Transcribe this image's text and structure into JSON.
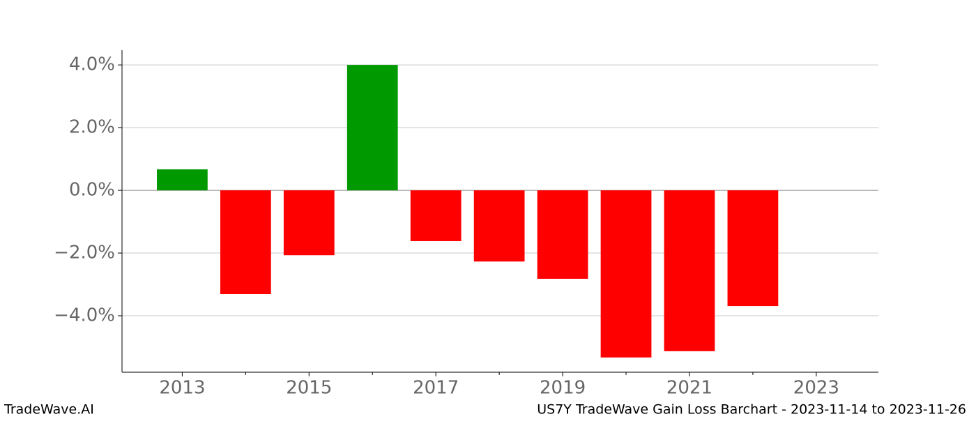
{
  "chart_data": {
    "type": "bar",
    "x": [
      2013,
      2014,
      2015,
      2016,
      2017,
      2018,
      2019,
      2020,
      2021,
      2022
    ],
    "values": [
      0.67,
      -3.31,
      -2.07,
      4.0,
      -1.62,
      -2.27,
      -2.82,
      -5.33,
      -5.13,
      -3.69
    ],
    "positive_color": "#009900",
    "negative_color": "#ff0000",
    "bar_width": 0.8,
    "xlim": [
      2012.05,
      2023.98
    ],
    "xticks": [
      2013,
      2015,
      2017,
      2019,
      2021,
      2023
    ],
    "xticks_minor": [
      2014,
      2016,
      2018,
      2020,
      2022
    ],
    "ylim": [
      -5.8,
      4.47
    ],
    "yticks": [
      {
        "value": -4,
        "label": "−4.0%"
      },
      {
        "value": -2,
        "label": "−2.0%"
      },
      {
        "value": 0,
        "label": "0.0%"
      },
      {
        "value": 2,
        "label": "2.0%"
      },
      {
        "value": 4,
        "label": "4.0%"
      }
    ],
    "grid": true
  },
  "footer": {
    "left": "TradeWave.AI",
    "right": "US7Y TradeWave Gain Loss Barchart - 2023-11-14 to 2023-11-26"
  }
}
